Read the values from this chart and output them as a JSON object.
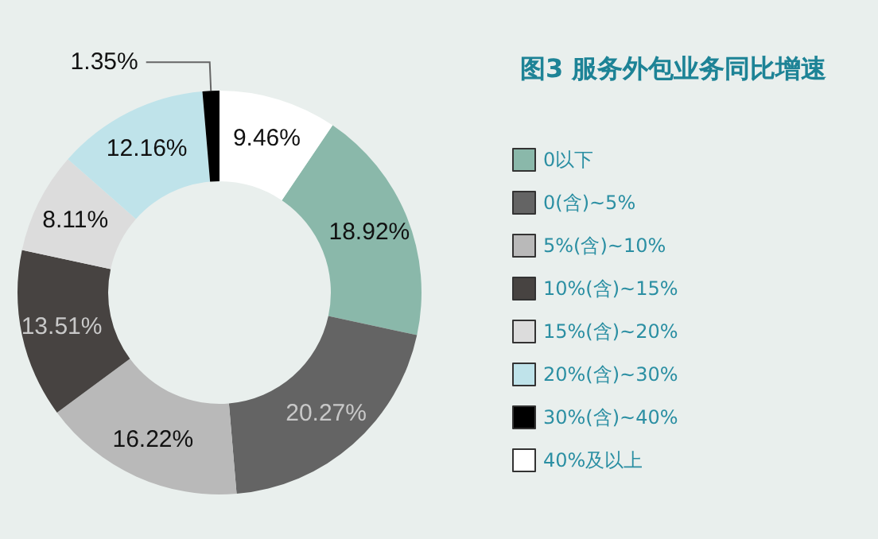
{
  "chart_data": {
    "type": "donut",
    "title": "图3 服务外包业务同比增速",
    "categories": [
      "0以下",
      "0(含)~5%",
      "5%(含)~10%",
      "10%(含)~15%",
      "15%(含)~20%",
      "20%(含)~30%",
      "30%(含)~40%",
      "40%及以上"
    ],
    "values": [
      18.92,
      20.27,
      16.22,
      13.51,
      8.11,
      12.16,
      1.35,
      9.46
    ],
    "value_labels": [
      "18.92%",
      "20.27%",
      "16.22%",
      "13.51%",
      "8.11%",
      "12.16%",
      "1.35%",
      "9.46%"
    ],
    "colors": [
      "#8ab8aa",
      "#646464",
      "#b9b9b9",
      "#474341",
      "#dcdcdc",
      "#bfe3ea",
      "#000000",
      "#ffffff"
    ],
    "legend": "right"
  }
}
